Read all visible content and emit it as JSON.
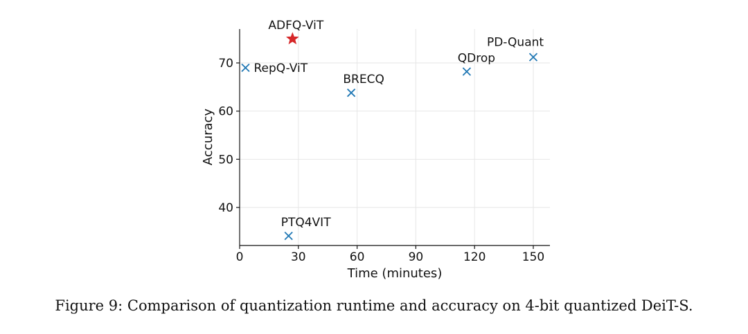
{
  "chart_data": {
    "type": "scatter",
    "xlabel": "Time (minutes)",
    "ylabel": "Accuracy",
    "xlim": [
      0,
      158
    ],
    "ylim": [
      32,
      77
    ],
    "xticks": [
      0,
      30,
      60,
      90,
      120,
      150
    ],
    "yticks": [
      40,
      50,
      60,
      70
    ],
    "grid": true,
    "points": [
      {
        "label": "ADFQ-ViT",
        "x": 27,
        "y": 75.0,
        "marker": "star",
        "color": "#d62728"
      },
      {
        "label": "RepQ-ViT",
        "x": 3,
        "y": 69.0,
        "marker": "x",
        "color": "#1f77b4"
      },
      {
        "label": "BRECQ",
        "x": 57,
        "y": 63.8,
        "marker": "x",
        "color": "#1f77b4"
      },
      {
        "label": "QDrop",
        "x": 116,
        "y": 68.2,
        "marker": "x",
        "color": "#1f77b4"
      },
      {
        "label": "PD-Quant",
        "x": 150,
        "y": 71.2,
        "marker": "x",
        "color": "#1f77b4"
      },
      {
        "label": "PTQ4VIT",
        "x": 25,
        "y": 34.1,
        "marker": "x",
        "color": "#1f77b4"
      }
    ]
  },
  "caption": "Figure 9: Comparison of quantization runtime and accuracy on 4-bit quantized DeiT-S."
}
